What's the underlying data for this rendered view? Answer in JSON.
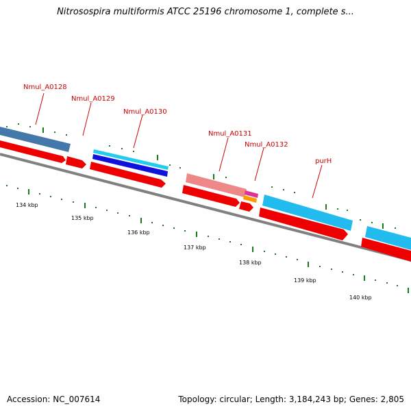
{
  "title": "Nitrosospira multiformis ATCC 25196 chromosome 1, complete s...",
  "footer": {
    "accession": "Accession: NC_007614",
    "summary": "Topology: circular; Length: 3,184,243 bp; Genes: 2,805"
  },
  "genes": [
    {
      "name": "Nmul_A0128"
    },
    {
      "name": "Nmul_A0129"
    },
    {
      "name": "Nmul_A0130"
    },
    {
      "name": "Nmul_A0131"
    },
    {
      "name": "Nmul_A0132"
    },
    {
      "name": "purH"
    }
  ],
  "scale_labels": [
    "134 kbp",
    "135 kbp",
    "136 kbp",
    "137 kbp",
    "138 kbp",
    "139 kbp",
    "140 kbp"
  ],
  "colors": {
    "cds": "#ee0000",
    "backbone": "#808080",
    "ticks": "#1a7a1a",
    "label": "#cc0000",
    "steelblue": "#4477aa",
    "cyan": "#22ccee",
    "navy": "#1111dd",
    "pink": "#ee8888",
    "magenta": "#dd3399",
    "orange": "#ff9900"
  }
}
